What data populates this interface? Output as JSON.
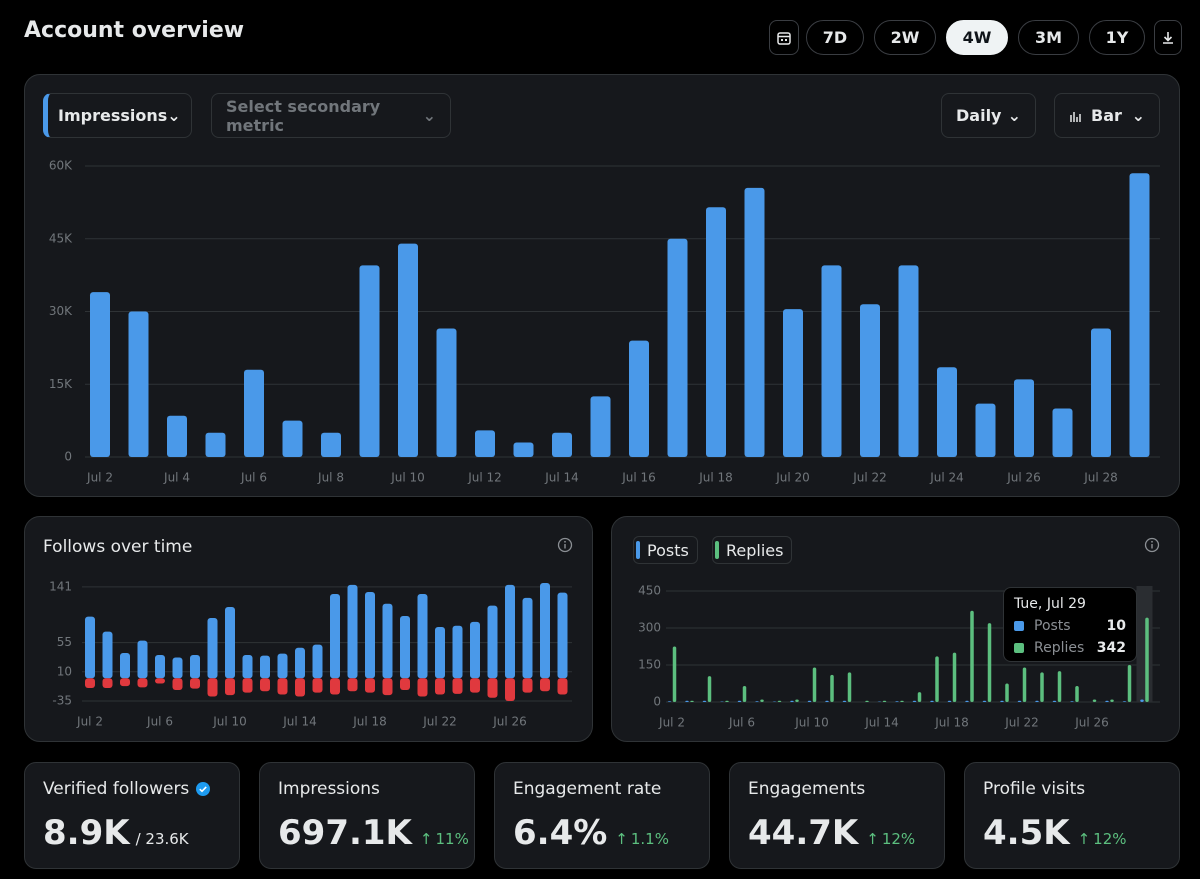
{
  "header": {
    "title": "Account overview",
    "ranges": [
      "7D",
      "2W",
      "4W",
      "3M",
      "1Y"
    ],
    "selected_range": "4W"
  },
  "controls": {
    "metric": "Impressions",
    "secondary_metric": "Select secondary metric",
    "interval": "Daily",
    "chart_type": "Bar"
  },
  "chart_data": [
    {
      "type": "bar",
      "categories": [
        "Jul 2",
        null,
        "Jul 4",
        null,
        "Jul 6",
        null,
        "Jul 8",
        null,
        "Jul 10",
        null,
        "Jul 12",
        null,
        "Jul 14",
        null,
        "Jul 16",
        null,
        "Jul 18",
        null,
        "Jul 20",
        null,
        "Jul 22",
        null,
        "Jul 24",
        null,
        "Jul 26",
        null,
        "Jul 28",
        null
      ],
      "values": [
        34000,
        30000,
        8500,
        5000,
        18000,
        7500,
        5000,
        39500,
        44000,
        26500,
        5500,
        3000,
        5000,
        12500,
        24000,
        45000,
        51500,
        55500,
        30500,
        39500,
        31500,
        39500,
        18500,
        11000,
        16000,
        10000,
        26500,
        58500
      ],
      "color": "#4a99e9",
      "ylim": [
        0,
        60000
      ],
      "yticks": [
        0,
        {
          "value": 15000,
          "label": "15K"
        },
        {
          "value": 30000,
          "label": "30K"
        },
        {
          "value": 45000,
          "label": "45K"
        },
        {
          "value": 60000,
          "label": "60K"
        }
      ],
      "grid": true
    },
    {
      "type": "bar",
      "title": "Follows over time",
      "categories": [
        "Jul 2",
        null,
        null,
        null,
        "Jul 6",
        null,
        null,
        null,
        "Jul 10",
        null,
        null,
        null,
        "Jul 14",
        null,
        null,
        null,
        "Jul 18",
        null,
        null,
        null,
        "Jul 22",
        null,
        null,
        null,
        "Jul 26",
        null,
        null,
        null
      ],
      "series": [
        {
          "color": "#4a99e9",
          "values": [
            95,
            72,
            39,
            58,
            36,
            32,
            36,
            93,
            110,
            36,
            35,
            38,
            47,
            52,
            130,
            144,
            133,
            115,
            96,
            130,
            79,
            81,
            87,
            112,
            144,
            124,
            147,
            132
          ]
        },
        {
          "color": "#e0393e",
          "values": [
            -15,
            -15,
            -12,
            -14,
            -8,
            -18,
            -16,
            -28,
            -26,
            -22,
            -20,
            -25,
            -28,
            -22,
            -25,
            -20,
            -22,
            -26,
            -18,
            -28,
            -25,
            -24,
            -22,
            -30,
            -35,
            -22,
            -20,
            -25
          ]
        }
      ],
      "ylim": [
        -35,
        150
      ],
      "yticks": [
        -35,
        10,
        55,
        141
      ],
      "grid": true
    },
    {
      "type": "bar",
      "categories": [
        "Jul 2",
        null,
        null,
        null,
        "Jul 6",
        null,
        null,
        null,
        "Jul 10",
        null,
        null,
        null,
        "Jul 14",
        null,
        null,
        null,
        "Jul 18",
        null,
        null,
        null,
        "Jul 22",
        null,
        null,
        null,
        "Jul 26",
        null,
        null,
        null
      ],
      "series": [
        {
          "name": "Posts",
          "color": "#4a99e9",
          "values": [
            3,
            5,
            5,
            2,
            5,
            3,
            2,
            5,
            5,
            5,
            5,
            0,
            2,
            3,
            5,
            5,
            5,
            5,
            5,
            5,
            5,
            5,
            5,
            3,
            0,
            5,
            3,
            10
          ]
        },
        {
          "name": "Replies",
          "color": "#5cbf7f",
          "values": [
            225,
            5,
            105,
            5,
            65,
            10,
            5,
            10,
            140,
            110,
            120,
            5,
            5,
            5,
            40,
            185,
            200,
            370,
            320,
            75,
            140,
            120,
            125,
            65,
            10,
            10,
            150,
            342
          ]
        }
      ],
      "ylim": [
        0,
        450
      ],
      "yticks": [
        0,
        150,
        300,
        450
      ],
      "grid": true,
      "tooltip": {
        "title": "Tue, Jul 29",
        "index": 27
      }
    }
  ],
  "stats": [
    {
      "label": "Verified followers",
      "value": "8.9K",
      "total": "/ 23.6K"
    },
    {
      "label": "Impressions",
      "value": "697.1K",
      "change": "11%"
    },
    {
      "label": "Engagement rate",
      "value": "6.4%",
      "change": "1.1%"
    },
    {
      "label": "Engagements",
      "value": "44.7K",
      "change": "12%"
    },
    {
      "label": "Profile visits",
      "value": "4.5K",
      "change": "12%"
    }
  ]
}
